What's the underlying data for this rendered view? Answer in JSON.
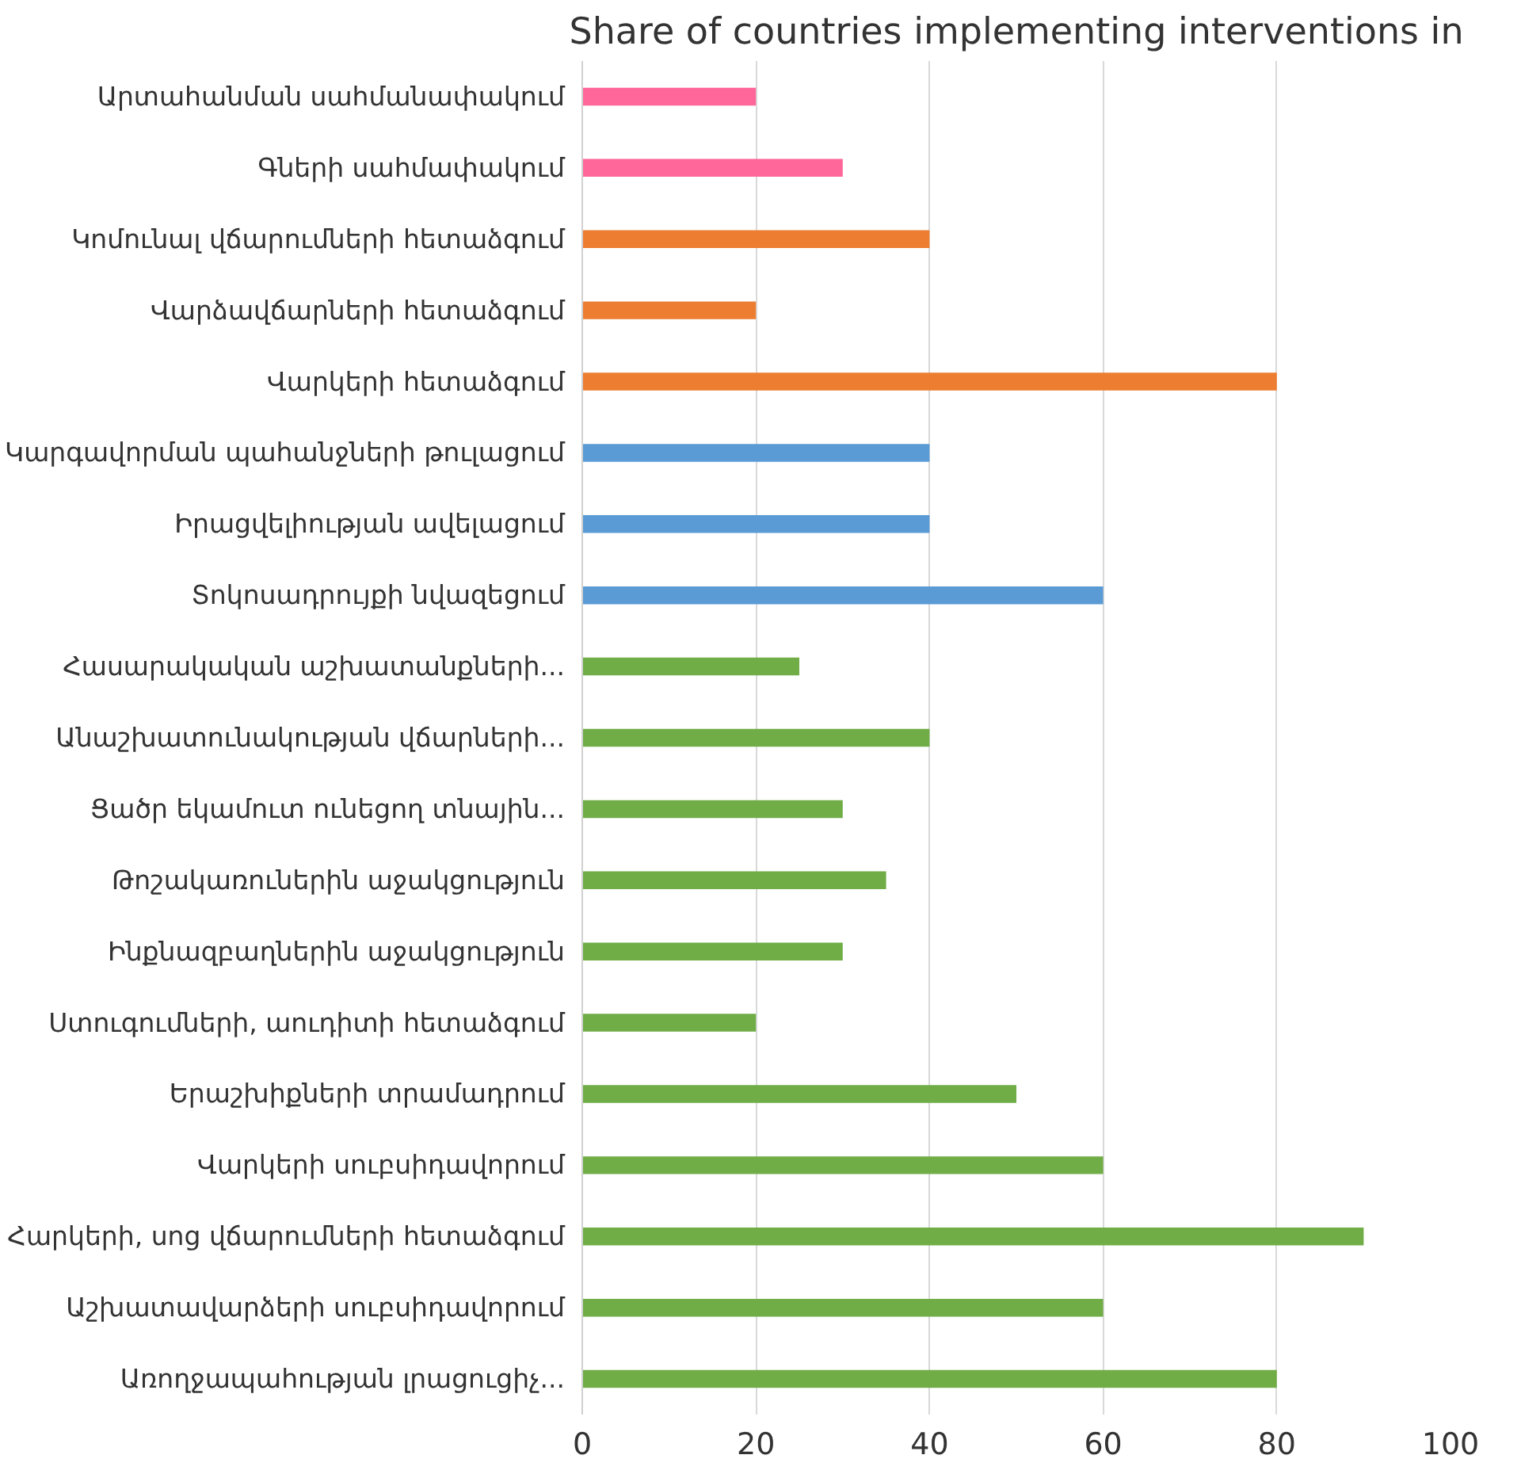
{
  "chart_data": {
    "type": "bar",
    "orientation": "horizontal",
    "title": "Share of countries implementing interventions in",
    "categories": [
      "Արտահանման սահմանափակում",
      "Գների սահմափակում",
      "Կոմունալ վճարումների հետաձգում",
      "Վարձավճարների հետաձգում",
      "Վարկերի հետաձգում",
      "Կարգավորման պահանջների թուլացում",
      "Իրացվելիության ավելացում",
      "Տոկոսադրույքի նվազեցում",
      "Հասարակական աշխատանքների...",
      "Անաշխատունակության վճարների...",
      "Ցածր եկամուտ ունեցող տնային...",
      "Թոշակառուներին աջակցություն",
      "Ինքնազբաղներին աջակցություն",
      "Ստուգումների, աուդիտի հետաձգում",
      "Երաշխիքների տրամադրում",
      "Վարկերի սուբսիդավորում",
      "Հարկերի, սոց վճարումների հետաձգում",
      "Աշխատավարձերի սուբսիդավորում",
      "Առողջապահության լրացուցիչ..."
    ],
    "values": [
      20,
      30,
      40,
      20,
      80,
      40,
      40,
      60,
      25,
      40,
      30,
      35,
      30,
      20,
      50,
      60,
      90,
      60,
      80
    ],
    "colors": [
      "#ff6699",
      "#ff6699",
      "#ed7d31",
      "#ed7d31",
      "#ed7d31",
      "#5b9bd5",
      "#5b9bd5",
      "#5b9bd5",
      "#70ad47",
      "#70ad47",
      "#70ad47",
      "#70ad47",
      "#70ad47",
      "#70ad47",
      "#70ad47",
      "#70ad47",
      "#70ad47",
      "#70ad47",
      "#70ad47"
    ],
    "xlim": [
      0,
      100
    ],
    "xticks": [
      0,
      20,
      40,
      60,
      80,
      100
    ],
    "grid": "x"
  }
}
